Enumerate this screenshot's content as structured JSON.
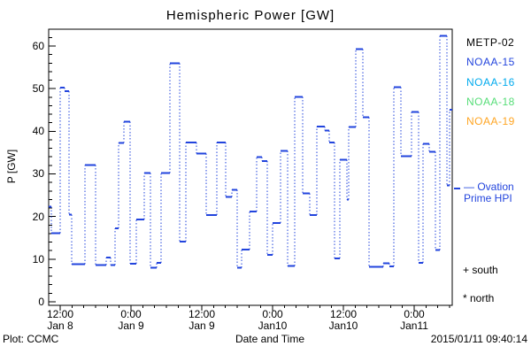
{
  "title": "Hemispheric Power [GW]",
  "colors": {
    "foreground": "#000000",
    "hpi_line": "#2244dd",
    "noaa15": "#2244dd",
    "noaa16": "#00aaee",
    "noaa18": "#55dd77",
    "noaa19": "#ffa522",
    "metp02": "#000000"
  },
  "axes": {
    "y": {
      "label": "P [GW]",
      "ticks": [
        0,
        10,
        20,
        30,
        40,
        50,
        60
      ],
      "minor_step_gw": 2
    },
    "x": {
      "label": "Date and Time",
      "ticks": [
        {
          "hour": 12,
          "time": "12:00",
          "date": "Jan 8"
        },
        {
          "hour": 24,
          "time": "0:00",
          "date": "Jan 9"
        },
        {
          "hour": 36,
          "time": "12:00",
          "date": "Jan 9"
        },
        {
          "hour": 48,
          "time": "0:00",
          "date": "Jan10"
        },
        {
          "hour": 60,
          "time": "12:00",
          "date": "Jan10"
        },
        {
          "hour": 72,
          "time": "0:00",
          "date": "Jan11"
        }
      ],
      "minor_step_hours": 2
    }
  },
  "legend": {
    "satellites": [
      {
        "label": "METP-02",
        "color": "#000000"
      },
      {
        "label": "NOAA-15",
        "color": "#2244dd"
      },
      {
        "label": "NOAA-16",
        "color": "#00aaee"
      },
      {
        "label": "NOAA-18",
        "color": "#55dd77"
      },
      {
        "label": "NOAA-19",
        "color": "#ffa522"
      }
    ],
    "ovation": {
      "line1": "— Ovation",
      "line2": "Prime HPI",
      "marker_p_gw": 26.6
    },
    "south_marker": "+ south",
    "north_marker": "* north"
  },
  "footer": {
    "left": "Plot: CCMC",
    "center": "Date and Time",
    "right": "2015/01/11 09:40:14"
  },
  "chart_data": {
    "type": "line",
    "style": "steps",
    "title": "Hemispheric Power [GW]",
    "xlabel": "Date and Time",
    "ylabel": "P [GW]",
    "x_unit": "hours after 2015-01-08 00:00 UT",
    "xlim_hours": [
      10.05,
      78.45
    ],
    "ylim": [
      0,
      64
    ],
    "grid": false,
    "legend_position": "right-outside",
    "series": [
      {
        "name": "Ovation Prime HPI",
        "color": "#2244dd",
        "end_hour": 78.45,
        "steps": [
          [
            10.05,
            22.3
          ],
          [
            10.5,
            16.1
          ],
          [
            12.0,
            50.2
          ],
          [
            12.75,
            49.4
          ],
          [
            13.5,
            20.4
          ],
          [
            13.95,
            8.8
          ],
          [
            16.2,
            32.1
          ],
          [
            18.0,
            8.6
          ],
          [
            19.8,
            10.4
          ],
          [
            20.55,
            8.6
          ],
          [
            21.3,
            17.2
          ],
          [
            21.9,
            37.3
          ],
          [
            22.8,
            42.2
          ],
          [
            23.85,
            8.9
          ],
          [
            24.9,
            19.3
          ],
          [
            26.25,
            30.2
          ],
          [
            27.3,
            8.0
          ],
          [
            28.35,
            9.1
          ],
          [
            29.1,
            30.2
          ],
          [
            30.6,
            56.0
          ],
          [
            32.25,
            14.1
          ],
          [
            33.3,
            37.4
          ],
          [
            35.1,
            34.8
          ],
          [
            36.75,
            20.3
          ],
          [
            38.55,
            37.4
          ],
          [
            40.05,
            24.6
          ],
          [
            41.1,
            26.3
          ],
          [
            42.0,
            8.0
          ],
          [
            42.75,
            12.3
          ],
          [
            44.1,
            21.2
          ],
          [
            45.3,
            33.9
          ],
          [
            46.2,
            33.0
          ],
          [
            47.1,
            11.0
          ],
          [
            48.0,
            18.5
          ],
          [
            49.35,
            35.4
          ],
          [
            50.55,
            8.4
          ],
          [
            51.75,
            48.1
          ],
          [
            53.1,
            25.4
          ],
          [
            54.3,
            20.3
          ],
          [
            55.5,
            41.1
          ],
          [
            56.85,
            40.2
          ],
          [
            57.6,
            37.4
          ],
          [
            58.5,
            10.2
          ],
          [
            59.4,
            33.3
          ],
          [
            60.6,
            24.0
          ],
          [
            60.9,
            41.0
          ],
          [
            62.1,
            59.3
          ],
          [
            63.3,
            43.3
          ],
          [
            64.35,
            8.2
          ],
          [
            66.75,
            9.0
          ],
          [
            67.8,
            8.3
          ],
          [
            68.55,
            50.3
          ],
          [
            69.75,
            34.2
          ],
          [
            71.55,
            44.5
          ],
          [
            72.75,
            9.1
          ],
          [
            73.5,
            37.1
          ],
          [
            74.55,
            35.2
          ],
          [
            75.6,
            12.1
          ],
          [
            76.35,
            62.4
          ],
          [
            77.55,
            27.3
          ],
          [
            78.0,
            45.0
          ]
        ]
      }
    ]
  }
}
